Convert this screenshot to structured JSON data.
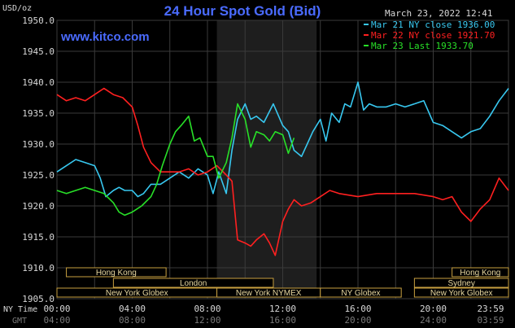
{
  "header": {
    "title": "24 Hour Spot Gold (Bid)",
    "unit_label": "USD/oz",
    "timestamp": "March 23, 2022 12:41",
    "site": "www.kitco.com"
  },
  "colors": {
    "background": "#000000",
    "title": "#4a6bff",
    "site": "#4a6bff",
    "grid": "#3a3a3a",
    "axis_text": "#d8d8d8",
    "gmt_text": "#7a7a7a",
    "night_shade": "#1e1e1e",
    "session_border": "#c8a040",
    "session_text": "#e8d8a0"
  },
  "legend": [
    {
      "label": "Mar 21 NY close 1936.00",
      "color": "#38c8f0"
    },
    {
      "label": "Mar 22 NY close 1921.70",
      "color": "#ff2020"
    },
    {
      "label": "Mar 23 Last 1933.70",
      "color": "#28e028"
    }
  ],
  "time_axis": {
    "ny_label": "NY Time",
    "gmt_label": "GMT",
    "ny_ticks": [
      "00:00",
      "04:00",
      "08:00",
      "12:00",
      "16:00",
      "20:00",
      "23:59"
    ],
    "gmt_ticks": [
      "04:00",
      "08:00",
      "12:00",
      "16:00",
      "20:00",
      "24:00",
      "03:59"
    ]
  },
  "sessions": {
    "row1": [
      {
        "label": "Hong Kong",
        "start": 0.5,
        "end": 5.8
      },
      {
        "label": "Hong Kong",
        "start": 21.0,
        "end": 24.0
      }
    ],
    "row2": [
      {
        "label": "London",
        "start": 3.0,
        "end": 11.5
      },
      {
        "label": "Sydney",
        "start": 19.0,
        "end": 24.0
      }
    ],
    "row3": [
      {
        "label": "New York Globex",
        "start": 0.0,
        "end": 8.5
      },
      {
        "label": "New York NYMEX",
        "start": 8.5,
        "end": 14.0
      },
      {
        "label": "NY Globex",
        "start": 14.0,
        "end": 18.3
      },
      {
        "label": "New York Globex",
        "start": 19.0,
        "end": 24.0
      }
    ]
  },
  "chart_data": {
    "type": "line",
    "title": "24 Hour Spot Gold (Bid)",
    "ylabel": "USD/oz",
    "ylim": [
      1905,
      1950
    ],
    "xlim": [
      0,
      24
    ],
    "yticks": [
      1905.0,
      1910.0,
      1915.0,
      1920.0,
      1925.0,
      1930.0,
      1935.0,
      1940.0,
      1945.0,
      1950.0
    ],
    "y_tick_labels": [
      "1905.0",
      "1910.0",
      "1915.0",
      "1920.0",
      "1925.0",
      "1930.0",
      "1935.0",
      "1940.0",
      "1945.0",
      "1950.0"
    ],
    "grid": true,
    "legend_position": "top-right",
    "shaded_region": [
      8.5,
      13.8
    ],
    "series": [
      {
        "name": "Mar 21 NY close 1936.00",
        "color": "#38c8f0",
        "x": [
          0,
          0.5,
          1,
          1.5,
          2,
          2.3,
          2.6,
          3,
          3.3,
          3.6,
          4,
          4.3,
          4.6,
          5,
          5.5,
          6,
          6.5,
          7,
          7.5,
          8,
          8.3,
          8.6,
          9,
          9.3,
          9.6,
          10,
          10.3,
          10.6,
          11,
          11.5,
          12,
          12.3,
          12.6,
          13,
          13.3,
          13.6,
          14,
          14.3,
          14.6,
          15,
          15.3,
          15.6,
          16,
          16.3,
          16.6,
          17,
          17.5,
          18,
          18.5,
          19,
          19.5,
          20,
          20.5,
          21,
          21.5,
          22,
          22.5,
          23,
          23.5,
          24
        ],
        "y": [
          1925.5,
          1926.5,
          1927.5,
          1927,
          1926.5,
          1924.5,
          1921.5,
          1922.5,
          1923,
          1922.5,
          1922.5,
          1921.5,
          1922,
          1923.5,
          1923.5,
          1924.5,
          1925.5,
          1924.5,
          1926,
          1925,
          1922,
          1925.5,
          1922,
          1929,
          1934,
          1936.5,
          1934,
          1934.5,
          1933.5,
          1936.5,
          1933,
          1932,
          1929,
          1928,
          1930,
          1932,
          1934,
          1930.5,
          1935,
          1933.5,
          1936.5,
          1936,
          1940,
          1935.5,
          1936.5,
          1936,
          1936,
          1936.5,
          1936,
          1936.5,
          1937,
          1933.5,
          1933,
          1932,
          1931,
          1932,
          1932.5,
          1934.5,
          1937,
          1939
        ]
      },
      {
        "name": "Mar 22 NY close 1921.70",
        "color": "#ff2020",
        "x": [
          0,
          0.5,
          1,
          1.5,
          2,
          2.5,
          3,
          3.5,
          4,
          4.3,
          4.6,
          5,
          5.5,
          6,
          6.5,
          7,
          7.5,
          8,
          8.5,
          9,
          9.3,
          9.6,
          10,
          10.3,
          10.6,
          11,
          11.3,
          11.6,
          12,
          12.3,
          12.6,
          13,
          13.5,
          14,
          14.5,
          15,
          16,
          17,
          18,
          19,
          20,
          20.5,
          21,
          21.5,
          22,
          22.5,
          23,
          23.5,
          24
        ],
        "y": [
          1938,
          1937,
          1937.5,
          1937,
          1938,
          1939,
          1938,
          1937.5,
          1936,
          1933,
          1929.5,
          1927,
          1925.5,
          1925.5,
          1925.5,
          1926,
          1925,
          1925.5,
          1926.5,
          1925,
          1924,
          1914.5,
          1914,
          1913.5,
          1914.5,
          1915.5,
          1914,
          1912,
          1917.5,
          1919.5,
          1921,
          1920,
          1920.5,
          1921.5,
          1922.5,
          1922,
          1921.5,
          1922,
          1922,
          1922,
          1921.5,
          1921,
          1921.5,
          1919,
          1917.5,
          1919.5,
          1921,
          1924.5,
          1922.5
        ]
      },
      {
        "name": "Mar 23 Last 1933.70",
        "color": "#28e028",
        "x": [
          0,
          0.5,
          1,
          1.5,
          2,
          2.5,
          3,
          3.3,
          3.6,
          4,
          4.5,
          5,
          5.3,
          5.6,
          6,
          6.3,
          6.6,
          7,
          7.3,
          7.6,
          8,
          8.3,
          8.6,
          9,
          9.3,
          9.6,
          10,
          10.3,
          10.6,
          11,
          11.3,
          11.6,
          12,
          12.3,
          12.6
        ],
        "y": [
          1922.5,
          1922,
          1922.5,
          1923,
          1922.5,
          1922,
          1920.5,
          1919,
          1918.5,
          1919,
          1920,
          1921.5,
          1923.5,
          1926.5,
          1930,
          1932,
          1933,
          1934.5,
          1930.5,
          1931,
          1928,
          1928,
          1924.5,
          1927,
          1931,
          1936.5,
          1934,
          1929.5,
          1932,
          1931.5,
          1930.5,
          1932,
          1931.5,
          1928.5,
          1931
        ]
      }
    ]
  }
}
